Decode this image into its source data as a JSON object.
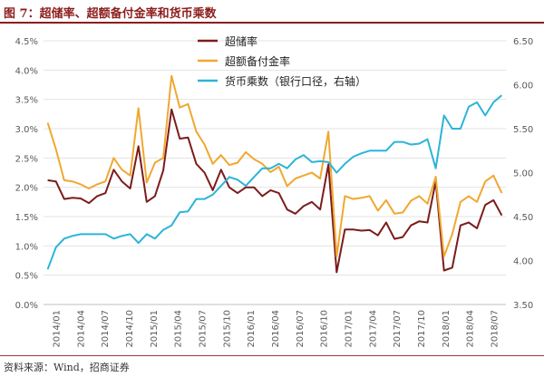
{
  "figure": {
    "title": "图 7：超储率、超额备付金率和货币乘数",
    "source": "资料来源：Wind，招商证券"
  },
  "chart_data": {
    "type": "line",
    "title": "超储率、超额备付金率和货币乘数",
    "x_tick_labels": [
      "2014/01",
      "2014/04",
      "2014/07",
      "2014/10",
      "2015/01",
      "2015/04",
      "2015/07",
      "2015/10",
      "2016/01",
      "2016/04",
      "2016/07",
      "2016/10",
      "2017/01",
      "2017/04",
      "2017/07",
      "2017/10",
      "2018/01",
      "2018/04",
      "2018/07"
    ],
    "y_left": {
      "range": [
        0,
        4.5
      ],
      "ticks": [
        "0.0%",
        "0.5%",
        "1.0%",
        "1.5%",
        "2.0%",
        "2.5%",
        "3.0%",
        "3.5%",
        "4.0%",
        "4.5%"
      ]
    },
    "y_right": {
      "range": [
        3.5,
        6.5
      ],
      "ticks": [
        "3.50",
        "4.00",
        "4.50",
        "5.00",
        "5.50",
        "6.00",
        "6.50"
      ]
    },
    "legend_position": "top-center",
    "series": [
      {
        "name": "超储率",
        "axis": "left",
        "color": "#7b1c1c",
        "values": [
          2.12,
          2.1,
          1.8,
          1.82,
          1.81,
          1.73,
          1.85,
          1.9,
          2.3,
          2.1,
          1.98,
          2.7,
          1.75,
          1.85,
          2.29,
          3.33,
          2.83,
          2.85,
          2.4,
          2.25,
          1.95,
          2.3,
          2.0,
          1.9,
          2.0,
          2.0,
          1.85,
          1.95,
          1.9,
          1.62,
          1.55,
          1.68,
          1.75,
          1.62,
          2.39,
          0.55,
          1.28,
          1.28,
          1.26,
          1.27,
          1.18,
          1.4,
          1.12,
          1.15,
          1.35,
          1.42,
          1.4,
          2.1,
          0.58,
          0.63,
          1.35,
          1.4,
          1.3,
          1.7,
          1.78,
          1.52
        ]
      },
      {
        "name": "超额备付金率",
        "axis": "left",
        "color": "#f0a830",
        "values": [
          3.1,
          2.65,
          2.12,
          2.1,
          2.05,
          1.98,
          2.05,
          2.1,
          2.5,
          2.3,
          2.2,
          3.35,
          2.08,
          2.42,
          2.5,
          3.9,
          3.36,
          3.42,
          2.95,
          2.73,
          2.4,
          2.55,
          2.38,
          2.42,
          2.6,
          2.48,
          2.4,
          2.26,
          2.35,
          2.02,
          2.15,
          2.2,
          2.25,
          2.15,
          2.95,
          0.82,
          1.85,
          1.8,
          1.82,
          1.85,
          1.6,
          1.78,
          1.55,
          1.57,
          1.77,
          1.85,
          1.72,
          2.18,
          0.82,
          1.2,
          1.75,
          1.85,
          1.75,
          2.1,
          2.2,
          1.9
        ]
      },
      {
        "name": "货币乘数（银行口径，右轴）",
        "axis": "right",
        "color": "#2cb4d8",
        "values": [
          3.9,
          4.15,
          4.25,
          4.28,
          4.3,
          4.3,
          4.3,
          4.3,
          4.25,
          4.28,
          4.3,
          4.2,
          4.3,
          4.25,
          4.35,
          4.4,
          4.55,
          4.56,
          4.7,
          4.7,
          4.75,
          4.85,
          4.95,
          4.92,
          4.85,
          4.95,
          5.05,
          5.05,
          5.1,
          5.05,
          5.15,
          5.2,
          5.12,
          5.13,
          5.12,
          5.0,
          5.1,
          5.18,
          5.22,
          5.25,
          5.25,
          5.25,
          5.35,
          5.35,
          5.32,
          5.33,
          5.38,
          5.05,
          5.65,
          5.5,
          5.5,
          5.75,
          5.8,
          5.65,
          5.8,
          5.88
        ]
      }
    ]
  }
}
